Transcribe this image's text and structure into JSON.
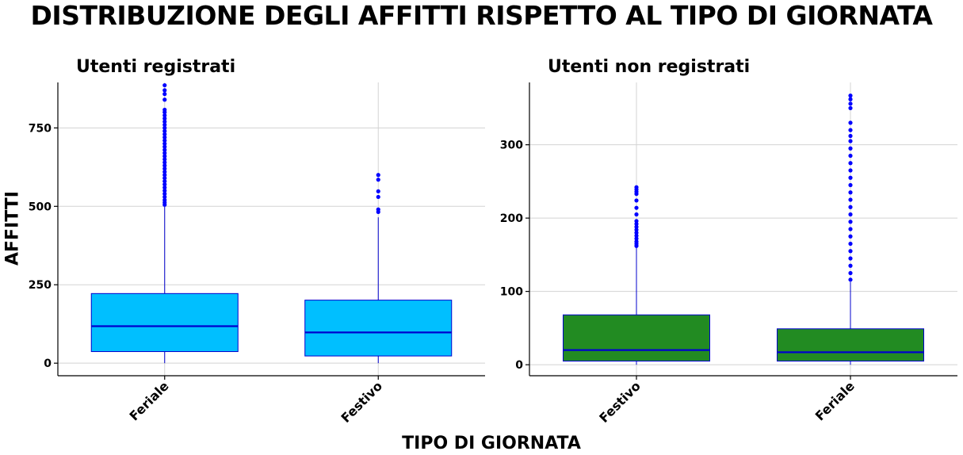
{
  "title": "DISTRIBUZIONE DEGLI AFFITTI RISPETTO AL TIPO DI GIORNATA",
  "ylabel": "AFFITTI",
  "xlabel": "TIPO DI GIORNATA",
  "colors": {
    "registrati_fill": "#00BFFF",
    "non_registrati_fill": "#228B22",
    "outline": "#0000CD",
    "outlier": "#0000FF",
    "grid": "#D3D3D3",
    "axis": "#000000"
  },
  "chart_data": [
    {
      "type": "box",
      "title": "Utenti registrati",
      "categories": [
        "Feriale",
        "Festivo"
      ],
      "ylim": [
        -40,
        895
      ],
      "yticks": [
        0,
        250,
        500,
        750
      ],
      "grid": true,
      "boxes": [
        {
          "category": "Feriale",
          "min": 0,
          "q1": 37,
          "median": 118,
          "q3": 222,
          "max": 499,
          "outliers": [
            505,
            512,
            520,
            530,
            540,
            550,
            560,
            570,
            580,
            590,
            600,
            610,
            620,
            630,
            640,
            650,
            660,
            670,
            680,
            690,
            700,
            710,
            720,
            730,
            740,
            750,
            760,
            770,
            780,
            790,
            800,
            808,
            840,
            858,
            870,
            886
          ]
        },
        {
          "category": "Festivo",
          "min": 0,
          "q1": 23,
          "median": 98,
          "q3": 201,
          "max": 465,
          "outliers": [
            482,
            490,
            530,
            548,
            585,
            600
          ]
        }
      ]
    },
    {
      "type": "box",
      "title": "Utenti non registrati",
      "categories": [
        "Festivo",
        "Feriale"
      ],
      "ylim": [
        -15,
        385
      ],
      "yticks": [
        0,
        100,
        200,
        300
      ],
      "grid": true,
      "boxes": [
        {
          "category": "Festivo",
          "min": 0,
          "q1": 5,
          "median": 20,
          "q3": 68,
          "max": 160,
          "outliers": [
            162,
            165,
            168,
            172,
            176,
            180,
            184,
            188,
            192,
            196,
            205,
            214,
            224,
            233,
            236,
            239,
            242
          ]
        },
        {
          "category": "Feriale",
          "min": 0,
          "q1": 5,
          "median": 17,
          "q3": 49,
          "max": 113,
          "outliers": [
            116,
            125,
            135,
            145,
            155,
            165,
            175,
            185,
            195,
            205,
            215,
            225,
            235,
            245,
            255,
            265,
            275,
            285,
            295,
            305,
            312,
            320,
            330,
            350,
            356,
            362,
            367
          ]
        }
      ]
    }
  ]
}
